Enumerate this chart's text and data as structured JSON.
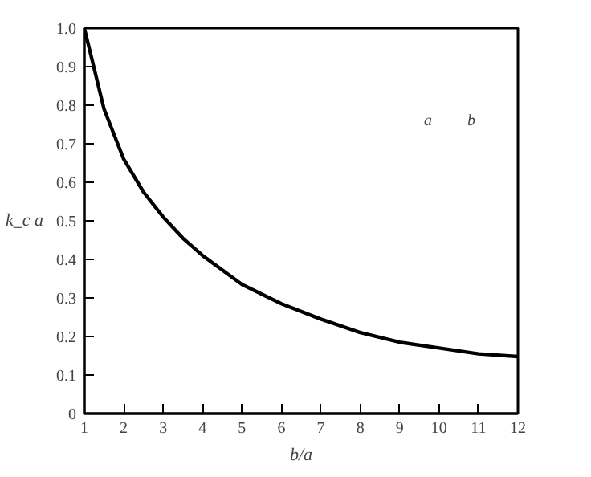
{
  "chart_data": {
    "type": "line",
    "xlabel": "b/a",
    "ylabel": "k_c a",
    "x": [
      1,
      1.5,
      2,
      2.5,
      3,
      3.5,
      4,
      5,
      6,
      7,
      8,
      9,
      10,
      11,
      12
    ],
    "series": [
      {
        "color": "#000000",
        "values": [
          1.0,
          0.79,
          0.66,
          0.575,
          0.51,
          0.455,
          0.41,
          0.335,
          0.285,
          0.245,
          0.21,
          0.185,
          0.17,
          0.155,
          0.148
        ]
      }
    ],
    "xlim": [
      1,
      12
    ],
    "xticks": [
      1,
      2,
      3,
      4,
      5,
      6,
      7,
      8,
      9,
      10,
      11,
      12
    ],
    "ylim": [
      0,
      1.0
    ],
    "yticks": [
      {
        "value": 0,
        "label": "0"
      },
      0.1,
      0.2,
      0.3,
      0.4,
      0.5,
      0.6,
      0.7,
      0.8,
      0.9,
      {
        "value": 1.0,
        "label": "1.0"
      }
    ],
    "annotations": [
      "a",
      "b"
    ],
    "grid": false,
    "marker": "none",
    "line_style": "solid"
  }
}
